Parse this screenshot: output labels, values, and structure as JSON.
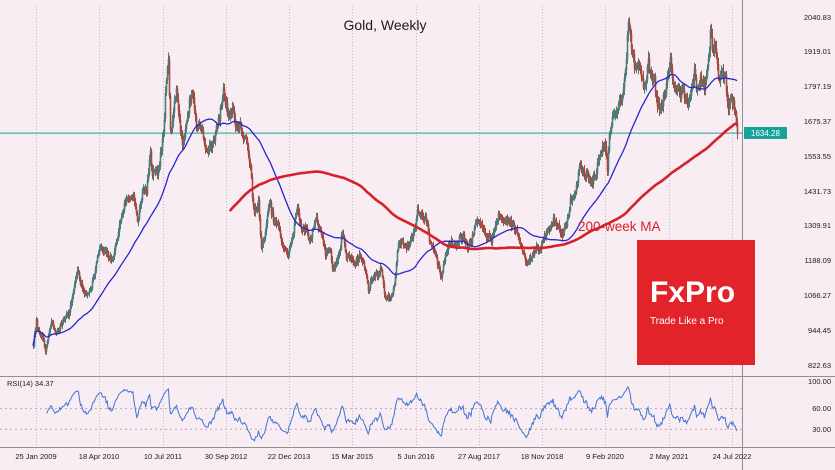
{
  "chart_data": {
    "type": "candlestick",
    "title": "Gold, Weekly",
    "ma_label": "200-week MA",
    "current_price": 1634.28,
    "current_price_label": "1634.28",
    "x_axis": {
      "tick_labels": [
        "25 Jan 2009",
        "18 Apr 2010",
        "10 Jul 2011",
        "30 Sep 2012",
        "22 Dec 2013",
        "15 Mar 2015",
        "5 Jun 2016",
        "27 Aug 2017",
        "18 Nov 2018",
        "9 Feb 2020",
        "2 May 2021",
        "24 Jul 2022"
      ],
      "tick_weeks": [
        3,
        67,
        131,
        195,
        259,
        323,
        387,
        451,
        515,
        579,
        643,
        707
      ],
      "weeks_total": 713
    },
    "y_axis": {
      "tick_labels": [
        "2040.83",
        "1919.01",
        "1797.19",
        "1675.37",
        "1553.55",
        "1431.73",
        "1309.91",
        "1188.09",
        "1066.27",
        "944.45",
        "822.63"
      ],
      "tick_values": [
        2040.83,
        1919.01,
        1797.19,
        1675.37,
        1553.55,
        1431.73,
        1309.91,
        1188.09,
        1066.27,
        944.45,
        822.63
      ],
      "ylim": [
        798,
        2079
      ]
    },
    "price_anchors": [
      [
        0,
        895
      ],
      [
        3,
        975
      ],
      [
        5,
        940
      ],
      [
        9,
        920
      ],
      [
        12,
        870
      ],
      [
        18,
        975
      ],
      [
        23,
        930
      ],
      [
        32,
        995
      ],
      [
        36,
        1005
      ],
      [
        41,
        1105
      ],
      [
        45,
        1160
      ],
      [
        48,
        1105
      ],
      [
        54,
        1065
      ],
      [
        59,
        1100
      ],
      [
        63,
        1160
      ],
      [
        67,
        1230
      ],
      [
        71,
        1220
      ],
      [
        75,
        1210
      ],
      [
        79,
        1185
      ],
      [
        84,
        1250
      ],
      [
        89,
        1345
      ],
      [
        93,
        1395
      ],
      [
        97,
        1405
      ],
      [
        101,
        1420
      ],
      [
        105,
        1320
      ],
      [
        110,
        1430
      ],
      [
        114,
        1430
      ],
      [
        118,
        1560
      ],
      [
        120,
        1490
      ],
      [
        126,
        1500
      ],
      [
        131,
        1630
      ],
      [
        136,
        1880
      ],
      [
        137,
        1910
      ],
      [
        139,
        1640
      ],
      [
        141,
        1680
      ],
      [
        145,
        1790
      ],
      [
        148,
        1680
      ],
      [
        151,
        1600
      ],
      [
        154,
        1640
      ],
      [
        158,
        1740
      ],
      [
        161,
        1780
      ],
      [
        165,
        1660
      ],
      [
        170,
        1660
      ],
      [
        174,
        1570
      ],
      [
        178,
        1580
      ],
      [
        183,
        1620
      ],
      [
        188,
        1690
      ],
      [
        192,
        1780
      ],
      [
        196,
        1710
      ],
      [
        201,
        1715
      ],
      [
        205,
        1655
      ],
      [
        209,
        1660
      ],
      [
        212,
        1610
      ],
      [
        216,
        1605
      ],
      [
        220,
        1477
      ],
      [
        221,
        1400
      ],
      [
        224,
        1360
      ],
      [
        228,
        1390
      ],
      [
        231,
        1225
      ],
      [
        236,
        1310
      ],
      [
        239,
        1395
      ],
      [
        243,
        1330
      ],
      [
        247,
        1315
      ],
      [
        252,
        1245
      ],
      [
        257,
        1205
      ],
      [
        262,
        1265
      ],
      [
        267,
        1380
      ],
      [
        271,
        1300
      ],
      [
        275,
        1300
      ],
      [
        280,
        1255
      ],
      [
        285,
        1340
      ],
      [
        290,
        1295
      ],
      [
        295,
        1215
      ],
      [
        300,
        1230
      ],
      [
        302,
        1150
      ],
      [
        306,
        1190
      ],
      [
        310,
        1220
      ],
      [
        313,
        1290
      ],
      [
        317,
        1200
      ],
      [
        322,
        1200
      ],
      [
        326,
        1180
      ],
      [
        330,
        1205
      ],
      [
        335,
        1170
      ],
      [
        339,
        1090
      ],
      [
        344,
        1135
      ],
      [
        348,
        1140
      ],
      [
        352,
        1160
      ],
      [
        356,
        1055
      ],
      [
        361,
        1060
      ],
      [
        365,
        1095
      ],
      [
        368,
        1230
      ],
      [
        372,
        1255
      ],
      [
        377,
        1230
      ],
      [
        381,
        1255
      ],
      [
        385,
        1295
      ],
      [
        388,
        1360
      ],
      [
        392,
        1350
      ],
      [
        397,
        1325
      ],
      [
        401,
        1255
      ],
      [
        406,
        1225
      ],
      [
        409,
        1180
      ],
      [
        413,
        1130
      ],
      [
        417,
        1210
      ],
      [
        422,
        1255
      ],
      [
        426,
        1245
      ],
      [
        431,
        1265
      ],
      [
        435,
        1270
      ],
      [
        439,
        1240
      ],
      [
        443,
        1255
      ],
      [
        448,
        1325
      ],
      [
        450,
        1320
      ],
      [
        454,
        1300
      ],
      [
        459,
        1275
      ],
      [
        463,
        1250
      ],
      [
        467,
        1320
      ],
      [
        470,
        1345
      ],
      [
        474,
        1320
      ],
      [
        479,
        1330
      ],
      [
        483,
        1315
      ],
      [
        488,
        1295
      ],
      [
        492,
        1255
      ],
      [
        497,
        1210
      ],
      [
        499,
        1180
      ],
      [
        504,
        1200
      ],
      [
        508,
        1230
      ],
      [
        513,
        1225
      ],
      [
        518,
        1280
      ],
      [
        522,
        1300
      ],
      [
        526,
        1330
      ],
      [
        530,
        1310
      ],
      [
        535,
        1285
      ],
      [
        539,
        1305
      ],
      [
        543,
        1400
      ],
      [
        548,
        1420
      ],
      [
        552,
        1525
      ],
      [
        555,
        1500
      ],
      [
        559,
        1490
      ],
      [
        564,
        1465
      ],
      [
        568,
        1480
      ],
      [
        572,
        1560
      ],
      [
        576,
        1585
      ],
      [
        579,
        1585
      ],
      [
        581,
        1500
      ],
      [
        583,
        1620
      ],
      [
        587,
        1700
      ],
      [
        592,
        1730
      ],
      [
        596,
        1770
      ],
      [
        600,
        1900
      ],
      [
        602,
        2035
      ],
      [
        605,
        1930
      ],
      [
        609,
        1860
      ],
      [
        613,
        1880
      ],
      [
        618,
        1780
      ],
      [
        622,
        1880
      ],
      [
        624,
        1850
      ],
      [
        628,
        1820
      ],
      [
        631,
        1730
      ],
      [
        635,
        1730
      ],
      [
        639,
        1780
      ],
      [
        644,
        1900
      ],
      [
        648,
        1780
      ],
      [
        652,
        1815
      ],
      [
        654,
        1765
      ],
      [
        656,
        1780
      ],
      [
        661,
        1750
      ],
      [
        665,
        1790
      ],
      [
        669,
        1845
      ],
      [
        671,
        1780
      ],
      [
        675,
        1830
      ],
      [
        679,
        1790
      ],
      [
        683,
        1890
      ],
      [
        685,
        1985
      ],
      [
        688,
        1925
      ],
      [
        690,
        1930
      ],
      [
        694,
        1810
      ],
      [
        697,
        1850
      ],
      [
        700,
        1825
      ],
      [
        703,
        1710
      ],
      [
        705,
        1765
      ],
      [
        708,
        1735
      ],
      [
        710,
        1710
      ],
      [
        712,
        1634.28
      ]
    ],
    "moving_averages": [
      {
        "name": "50-week MA",
        "period": 50,
        "color": "#2626cc"
      },
      {
        "name": "200-week MA",
        "period": 200,
        "color": "#d6202b"
      }
    ],
    "rsi": {
      "label": "RSI(14) 34.37",
      "period": 14,
      "current": 34.37,
      "tick_labels": [
        "100.00",
        "60.00",
        "30.00"
      ],
      "tick_values": [
        100,
        60,
        30
      ],
      "levels": [
        60,
        30
      ],
      "range": [
        0,
        100
      ],
      "color": "#3f74d6"
    }
  },
  "branding": {
    "logo_text": "FxPro",
    "tagline": "Trade Like a Pro",
    "color": "#e3232a"
  },
  "colors": {
    "background": "#f8edf2",
    "grid": "#c3b8bd",
    "bull": "#4d7d78",
    "bear": "#a34a42",
    "teal_line": "#17a398",
    "separator": "#8f8f8f",
    "axis_text": "#1c1c1c"
  }
}
